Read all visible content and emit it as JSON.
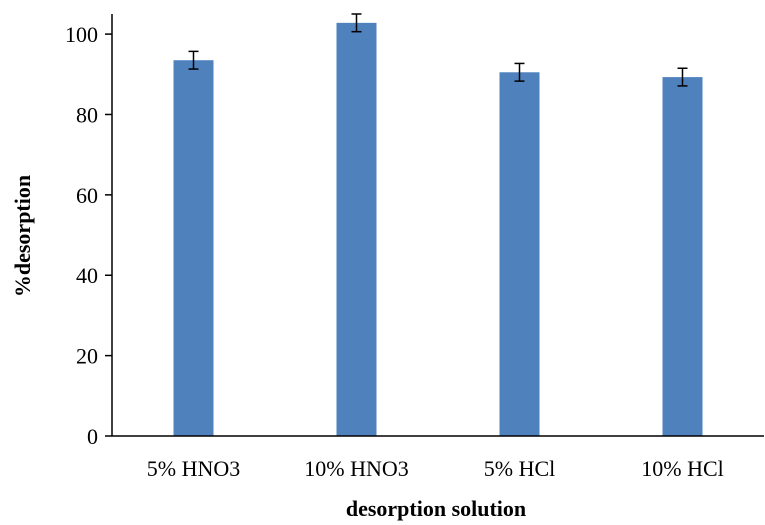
{
  "chart_data": {
    "type": "bar",
    "categories": [
      "5% HNO3",
      "10% HNO3",
      "5% HCl",
      "10% HCl"
    ],
    "values": [
      93.5,
      102.8,
      90.5,
      89.3
    ],
    "errors": [
      2.2,
      2.2,
      2.2,
      2.2
    ],
    "title": "",
    "xlabel": "desorption solution",
    "ylabel": "%desorption",
    "ylim": [
      0,
      105
    ],
    "yticks": [
      0,
      20,
      40,
      60,
      80,
      100
    ],
    "grid": false,
    "legend": "none",
    "bar_color": "#4f81bd"
  }
}
